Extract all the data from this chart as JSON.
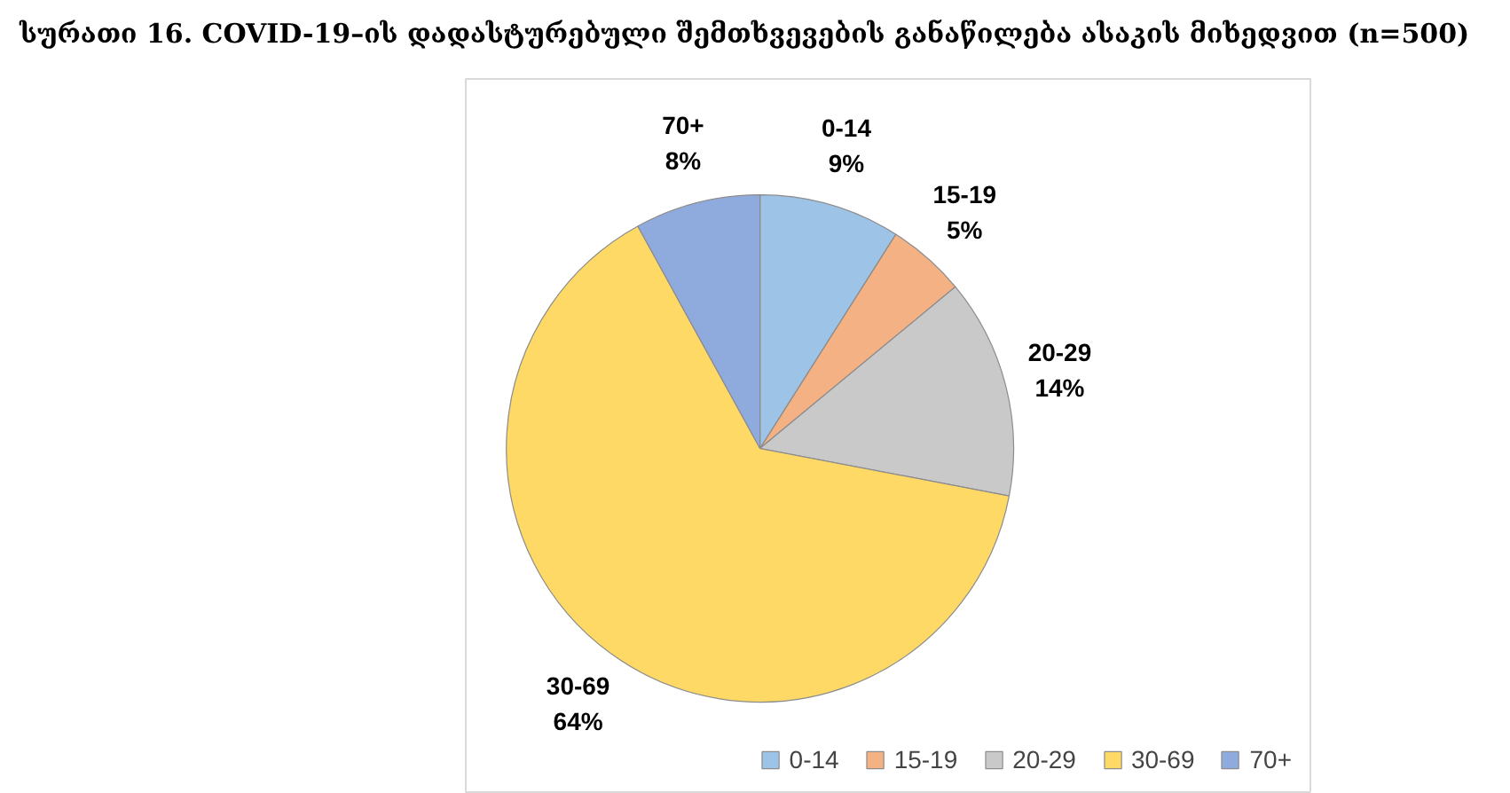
{
  "chart_data": {
    "type": "pie",
    "title": "სურათი 16. COVID-19–ის დადასტურებული შემთხვევების განაწილება ასაკის მიხედვით (n=500)",
    "categories": [
      "0-14",
      "15-19",
      "20-29",
      "30-69",
      "70+"
    ],
    "values": [
      9,
      5,
      14,
      64,
      8
    ],
    "value_labels": [
      "9%",
      "5%",
      "14%",
      "64%",
      "8%"
    ],
    "colors": [
      "#9dc3e6",
      "#f4b183",
      "#c9c9c9",
      "#ffd966",
      "#8faadc"
    ],
    "legend": "bottom right"
  }
}
